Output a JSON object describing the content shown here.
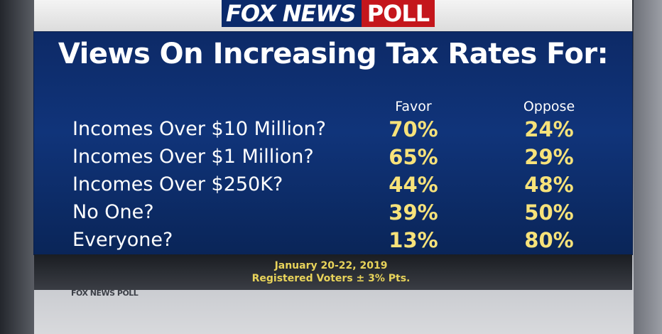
{
  "logo": {
    "brand": "FOX NEWS",
    "poll": "POLL"
  },
  "chart_data": {
    "type": "table",
    "title": "Views On Increasing Tax Rates For:",
    "columns": [
      "Favor",
      "Oppose"
    ],
    "rows": [
      {
        "label": "Incomes Over $10 Million?",
        "favor": "70%",
        "oppose": "24%"
      },
      {
        "label": "Incomes Over $1 Million?",
        "favor": "65%",
        "oppose": "29%"
      },
      {
        "label": "Incomes Over $250K?",
        "favor": "44%",
        "oppose": "48%"
      },
      {
        "label": "No One?",
        "favor": "39%",
        "oppose": "50%"
      },
      {
        "label": "Everyone?",
        "favor": "13%",
        "oppose": "80%"
      }
    ]
  },
  "footer": {
    "date": "January 20-22, 2019",
    "sample": "Registered Voters ± 3% Pts."
  },
  "watermark": "FOX NEWS POLL",
  "colors": {
    "panel": "#10347a",
    "value": "#f7e27a",
    "footer_text": "#e8d35a",
    "fox_blue": "#0b2a6b",
    "poll_red": "#c4161c"
  }
}
